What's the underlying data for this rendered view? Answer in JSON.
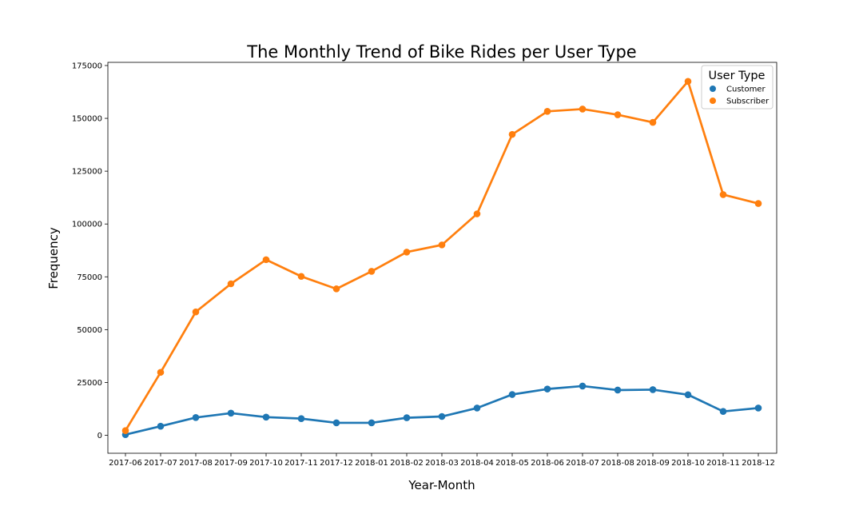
{
  "chart_data": {
    "type": "line",
    "title": "The Monthly Trend of Bike Rides per User Type",
    "xlabel": "Year-Month",
    "ylabel": "Frequency",
    "categories": [
      "2017-06",
      "2017-07",
      "2017-08",
      "2017-09",
      "2017-10",
      "2017-11",
      "2017-12",
      "2018-01",
      "2018-02",
      "2018-03",
      "2018-04",
      "2018-05",
      "2018-06",
      "2018-07",
      "2018-08",
      "2018-09",
      "2018-10",
      "2018-11",
      "2018-12"
    ],
    "ylim": [
      -8500,
      176500
    ],
    "yticks": [
      0,
      25000,
      50000,
      75000,
      100000,
      125000,
      150000,
      175000
    ],
    "grid": false,
    "legend": {
      "title": "User Type",
      "placement": "top-right"
    },
    "series": [
      {
        "name": "Customer",
        "color": "#1f77b4",
        "values": [
          300,
          4300,
          8400,
          10500,
          8600,
          7900,
          5900,
          5900,
          8300,
          8900,
          12900,
          19300,
          21900,
          23300,
          21400,
          21600,
          19200,
          11300,
          12900
        ]
      },
      {
        "name": "Subscriber",
        "color": "#ff7f0e",
        "values": [
          2200,
          29800,
          58400,
          71700,
          83100,
          75200,
          69300,
          77600,
          86700,
          90100,
          104800,
          142400,
          153300,
          154400,
          151700,
          148100,
          167500,
          113900,
          109700
        ]
      }
    ]
  }
}
